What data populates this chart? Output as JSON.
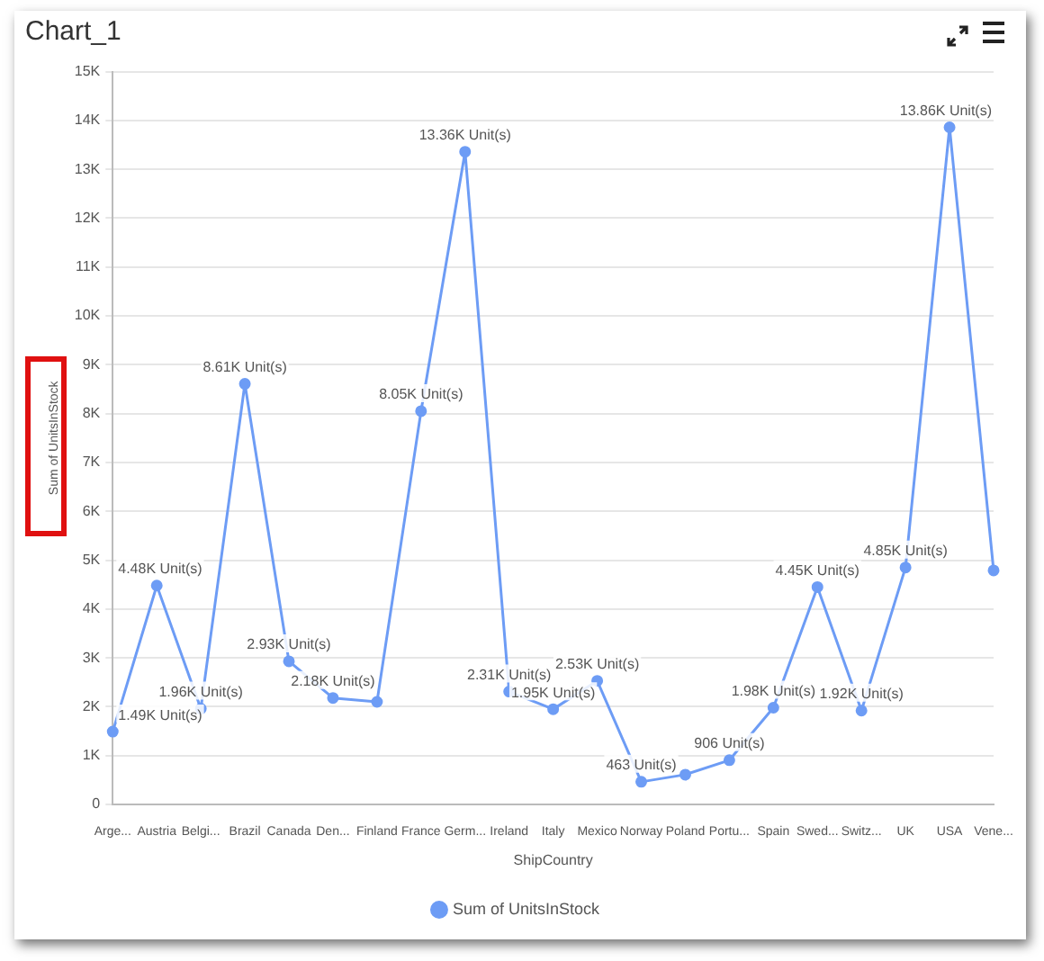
{
  "chart_data": {
    "type": "line",
    "title": "Chart_1",
    "xlabel": "ShipCountry",
    "ylabel": "Sum of UnitsInStock",
    "categories": [
      "Arge...",
      "Austria",
      "Belgi...",
      "Brazil",
      "Canada",
      "Den...",
      "Finland",
      "France",
      "Germ...",
      "Ireland",
      "Italy",
      "Mexico",
      "Norway",
      "Poland",
      "Portu...",
      "Spain",
      "Swed...",
      "Switz...",
      "UK",
      "USA",
      "Vene..."
    ],
    "series": [
      {
        "name": "Sum of UnitsInStock",
        "color": "#6d9cf5",
        "values": [
          1490,
          4480,
          1960,
          8610,
          2930,
          2180,
          2100,
          8050,
          13360,
          2310,
          1950,
          2530,
          463,
          610,
          906,
          1980,
          4450,
          1920,
          4850,
          13860,
          4790
        ],
        "value_labels": [
          "1.49K Unit(s)",
          "4.48K Unit(s)",
          "1.96K Unit(s)",
          "8.61K Unit(s)",
          "2.93K Unit(s)",
          "2.18K Unit(s)",
          null,
          "8.05K Unit(s)",
          "13.36K Unit(s)",
          "2.31K Unit(s)",
          "1.95K Unit(s)",
          "2.53K Unit(s)",
          "463 Unit(s)",
          null,
          "906 Unit(s)",
          "1.98K Unit(s)",
          "4.45K Unit(s)",
          "1.92K Unit(s)",
          "4.85K Unit(s)",
          "13.86K Unit(s)",
          null
        ]
      }
    ],
    "ylim": [
      0,
      15000
    ],
    "yticks": [
      0,
      {
        "value": 1000,
        "label": "1K"
      },
      {
        "value": 2000,
        "label": "2K"
      },
      {
        "value": 3000,
        "label": "3K"
      },
      {
        "value": 4000,
        "label": "4K"
      },
      {
        "value": 5000,
        "label": "5K"
      },
      {
        "value": 6000,
        "label": "6K"
      },
      {
        "value": 7000,
        "label": "7K"
      },
      {
        "value": 8000,
        "label": "8K"
      },
      {
        "value": 9000,
        "label": "9K"
      },
      {
        "value": 10000,
        "label": "10K"
      },
      {
        "value": 11000,
        "label": "11K"
      },
      {
        "value": 12000,
        "label": "12K"
      },
      {
        "value": 13000,
        "label": "13K"
      },
      {
        "value": 14000,
        "label": "14K"
      },
      {
        "value": 15000,
        "label": "15K"
      }
    ],
    "grid": "y",
    "legend": "bottom",
    "marker": "circle",
    "line_style": "solid"
  }
}
